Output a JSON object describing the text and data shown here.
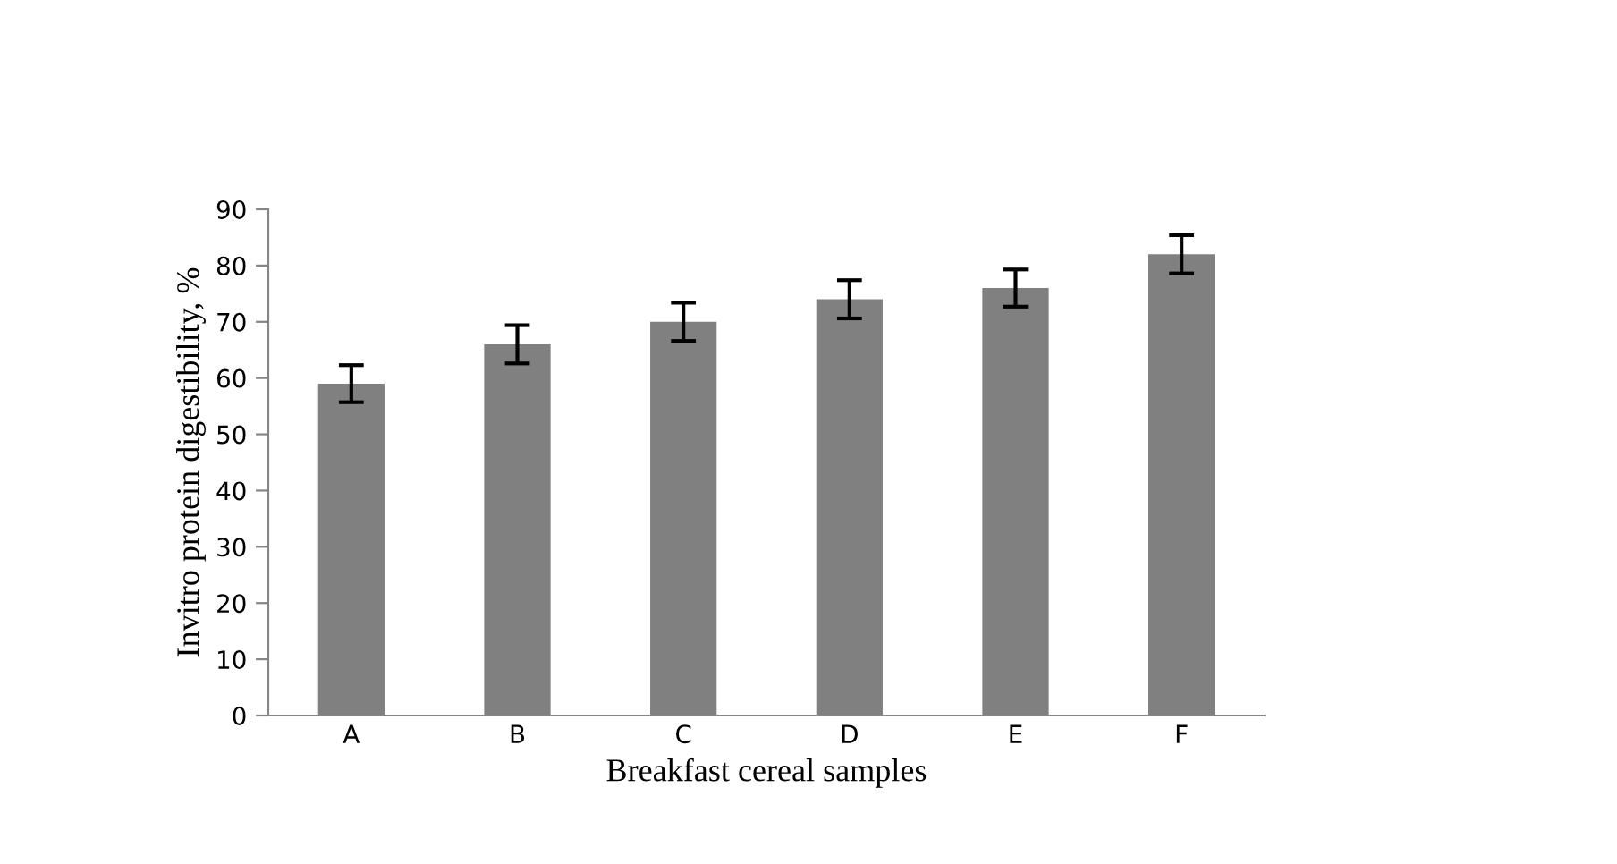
{
  "chart_data": {
    "type": "bar",
    "xlabel": "Breakfast cereal samples",
    "ylabel": "Invitro protein digestibility, %",
    "categories": [
      "A",
      "B",
      "C",
      "D",
      "E",
      "F"
    ],
    "values": [
      59,
      66,
      70,
      74,
      76,
      82
    ],
    "errors": [
      3.3,
      3.4,
      3.4,
      3.4,
      3.3,
      3.4
    ],
    "color": "#808080",
    "ylim": [
      0,
      90
    ],
    "yticks": [
      0,
      10,
      20,
      30,
      40,
      50,
      60,
      70,
      80,
      90
    ],
    "grid": false,
    "legend": false
  }
}
